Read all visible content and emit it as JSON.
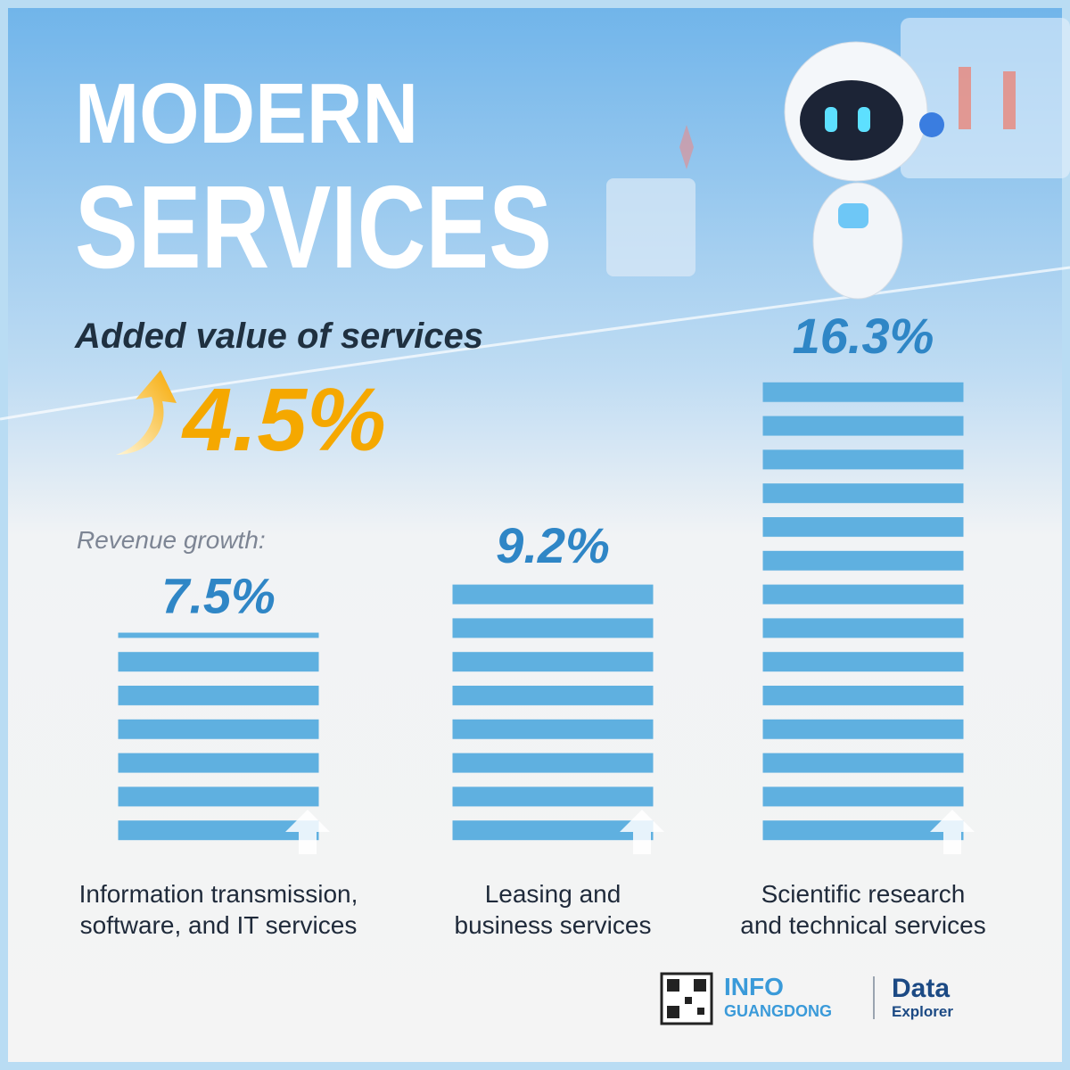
{
  "chart_data": {
    "type": "bar",
    "title": [
      "MODERN",
      "SERVICES"
    ],
    "subtitle": "Added value of services",
    "headline": {
      "value": 4.5,
      "label": "4.5%"
    },
    "series_label": "Revenue growth:",
    "categories": [
      "Information transmission, software, and IT services",
      "Leasing and business services",
      "Scientific research and technical services"
    ],
    "values": [
      7.5,
      9.2,
      16.3
    ],
    "value_labels": [
      "7.5%",
      "9.2%",
      "16.3%"
    ],
    "color": "#5fb0e0"
  },
  "footer": {
    "brand": [
      "INFO",
      "GUANGDONG"
    ],
    "partner": [
      "Data",
      "Explorer"
    ]
  }
}
